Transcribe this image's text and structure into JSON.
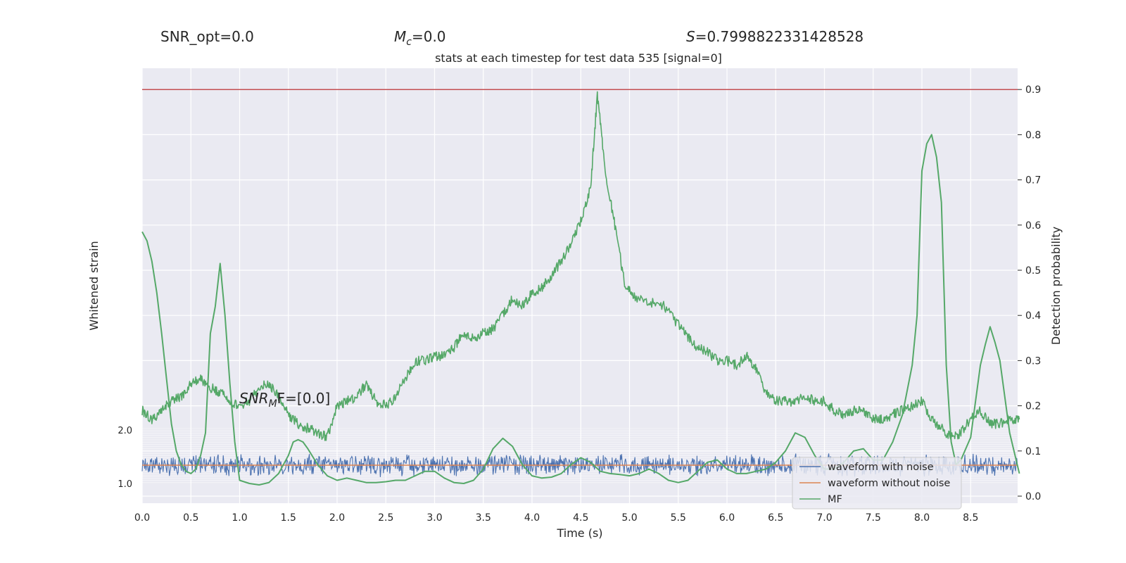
{
  "header": {
    "snr_opt": "SNR_opt=0.0",
    "mc_symbol": "M",
    "mc_sub": "c",
    "mc_value": "=0.0",
    "s_symbol": "S",
    "s_value": "=0.7998822331428528",
    "snr_mf_symbol": "SNR",
    "snr_mf_sub": "M",
    "snr_mf_value": "F=[0.0]"
  },
  "chart_data": {
    "type": "line",
    "title": "stats at each timestep for test data 535 [signal=0]",
    "xlabel": "Time (s)",
    "ylabel_left": "Whitened strain",
    "ylabel_right": "Detection probability",
    "xlim": [
      0.0,
      9.0
    ],
    "right_ylim": [
      -0.015,
      0.935
    ],
    "x_ticks": [
      "0.0",
      "0.5",
      "1.0",
      "1.5",
      "2.0",
      "2.5",
      "3.0",
      "3.5",
      "4.0",
      "4.5",
      "5.0",
      "5.5",
      "6.0",
      "6.5",
      "7.0",
      "7.5",
      "8.0",
      "8.5"
    ],
    "right_y_ticks": [
      "0.0",
      "0.1",
      "0.2",
      "0.3",
      "0.4",
      "0.5",
      "0.6",
      "0.7",
      "0.8",
      "0.9"
    ],
    "strain_axis_label_top": "2.0",
    "strain_axis_label_bottom": "1.0",
    "threshold": 0.9,
    "legend": {
      "placement": "lower-right",
      "entries": [
        {
          "label": "waveform with noise",
          "color": "#4c72b0"
        },
        {
          "label": "waveform without noise",
          "color": "#dd8452"
        },
        {
          "label": "MF",
          "color": "#55a868"
        }
      ]
    },
    "colors": {
      "noise": "#4c72b0",
      "clean": "#dd8452",
      "mf": "#55a868",
      "threshold": "#c44e52",
      "axes_bg": "#eaeaf2",
      "grid": "#ffffff"
    },
    "detection_probability": {
      "x": [
        0.0,
        0.1,
        0.2,
        0.3,
        0.4,
        0.5,
        0.6,
        0.7,
        0.8,
        0.9,
        1.0,
        1.1,
        1.2,
        1.3,
        1.4,
        1.5,
        1.6,
        1.7,
        1.8,
        1.9,
        2.0,
        2.1,
        2.2,
        2.3,
        2.4,
        2.5,
        2.6,
        2.7,
        2.8,
        2.9,
        3.0,
        3.1,
        3.2,
        3.3,
        3.4,
        3.5,
        3.6,
        3.7,
        3.8,
        3.9,
        4.0,
        4.1,
        4.2,
        4.3,
        4.4,
        4.5,
        4.6,
        4.67,
        4.75,
        4.85,
        4.95,
        5.05,
        5.2,
        5.35,
        5.5,
        5.6,
        5.7,
        5.8,
        5.9,
        6.0,
        6.1,
        6.2,
        6.3,
        6.4,
        6.5,
        6.6,
        6.7,
        6.8,
        6.9,
        7.0,
        7.1,
        7.2,
        7.3,
        7.4,
        7.5,
        7.6,
        7.7,
        7.8,
        7.9,
        8.0,
        8.1,
        8.2,
        8.3,
        8.4,
        8.5,
        8.6,
        8.7,
        8.8,
        8.9,
        9.0
      ],
      "y": [
        0.19,
        0.17,
        0.19,
        0.21,
        0.22,
        0.25,
        0.26,
        0.24,
        0.23,
        0.21,
        0.2,
        0.21,
        0.24,
        0.25,
        0.22,
        0.18,
        0.16,
        0.15,
        0.14,
        0.13,
        0.2,
        0.21,
        0.22,
        0.25,
        0.21,
        0.2,
        0.22,
        0.26,
        0.3,
        0.3,
        0.31,
        0.31,
        0.33,
        0.36,
        0.35,
        0.36,
        0.37,
        0.4,
        0.44,
        0.42,
        0.45,
        0.46,
        0.49,
        0.52,
        0.56,
        0.61,
        0.68,
        0.89,
        0.72,
        0.6,
        0.47,
        0.44,
        0.43,
        0.42,
        0.38,
        0.35,
        0.33,
        0.32,
        0.3,
        0.3,
        0.29,
        0.31,
        0.28,
        0.23,
        0.21,
        0.21,
        0.21,
        0.22,
        0.21,
        0.21,
        0.19,
        0.18,
        0.19,
        0.19,
        0.17,
        0.17,
        0.18,
        0.19,
        0.2,
        0.21,
        0.17,
        0.15,
        0.13,
        0.14,
        0.17,
        0.19,
        0.16,
        0.16,
        0.17,
        0.17
      ]
    },
    "mf": {
      "x": [
        0.0,
        0.05,
        0.1,
        0.15,
        0.2,
        0.25,
        0.3,
        0.35,
        0.4,
        0.45,
        0.5,
        0.55,
        0.6,
        0.65,
        0.7,
        0.75,
        0.8,
        0.85,
        0.9,
        0.95,
        1.0,
        1.1,
        1.2,
        1.3,
        1.4,
        1.5,
        1.55,
        1.6,
        1.65,
        1.7,
        1.8,
        1.9,
        2.0,
        2.1,
        2.2,
        2.3,
        2.4,
        2.5,
        2.6,
        2.7,
        2.8,
        2.9,
        3.0,
        3.1,
        3.2,
        3.3,
        3.4,
        3.5,
        3.6,
        3.7,
        3.8,
        3.9,
        4.0,
        4.1,
        4.2,
        4.3,
        4.4,
        4.5,
        4.6,
        4.7,
        4.8,
        4.9,
        5.0,
        5.1,
        5.2,
        5.3,
        5.4,
        5.5,
        5.6,
        5.7,
        5.8,
        5.9,
        6.0,
        6.1,
        6.2,
        6.3,
        6.4,
        6.5,
        6.6,
        6.7,
        6.8,
        6.9,
        7.0,
        7.1,
        7.2,
        7.3,
        7.4,
        7.5,
        7.6,
        7.7,
        7.8,
        7.9,
        7.95,
        8.0,
        8.05,
        8.1,
        8.15,
        8.2,
        8.25,
        8.3,
        8.35,
        8.4,
        8.5,
        8.6,
        8.65,
        8.7,
        8.75,
        8.8,
        8.9,
        9.0
      ],
      "y": [
        0.585,
        0.565,
        0.52,
        0.45,
        0.36,
        0.26,
        0.16,
        0.1,
        0.07,
        0.055,
        0.05,
        0.06,
        0.09,
        0.14,
        0.36,
        0.42,
        0.515,
        0.4,
        0.25,
        0.12,
        0.035,
        0.028,
        0.025,
        0.03,
        0.05,
        0.09,
        0.12,
        0.125,
        0.12,
        0.105,
        0.07,
        0.045,
        0.035,
        0.04,
        0.035,
        0.03,
        0.03,
        0.032,
        0.035,
        0.035,
        0.045,
        0.055,
        0.055,
        0.04,
        0.03,
        0.028,
        0.035,
        0.06,
        0.105,
        0.128,
        0.11,
        0.07,
        0.045,
        0.04,
        0.042,
        0.05,
        0.07,
        0.085,
        0.075,
        0.055,
        0.05,
        0.048,
        0.045,
        0.05,
        0.06,
        0.05,
        0.035,
        0.03,
        0.035,
        0.055,
        0.075,
        0.08,
        0.06,
        0.05,
        0.05,
        0.055,
        0.06,
        0.075,
        0.1,
        0.14,
        0.13,
        0.09,
        0.06,
        0.06,
        0.075,
        0.1,
        0.105,
        0.08,
        0.08,
        0.12,
        0.18,
        0.29,
        0.4,
        0.72,
        0.78,
        0.8,
        0.75,
        0.65,
        0.29,
        0.12,
        0.07,
        0.08,
        0.13,
        0.29,
        0.335,
        0.375,
        0.34,
        0.3,
        0.14,
        0.05
      ]
    }
  }
}
